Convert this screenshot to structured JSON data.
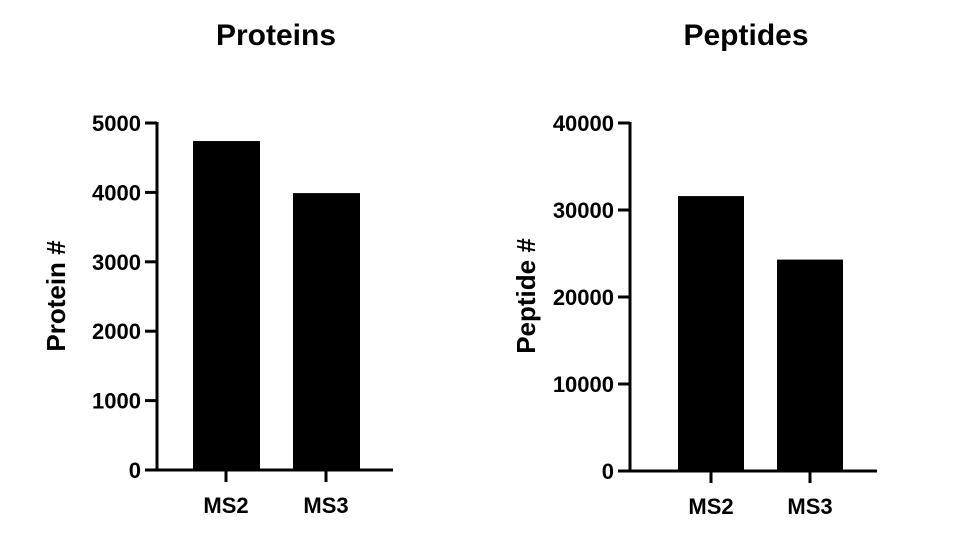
{
  "chart_data": [
    {
      "type": "bar",
      "title": "Proteins",
      "xlabel": "",
      "ylabel": "Protein #",
      "categories": [
        "MS2",
        "MS3"
      ],
      "values": [
        4740,
        3990
      ],
      "ylim": [
        0,
        5000
      ],
      "yticks": [
        "0",
        "1000",
        "2000",
        "3000",
        "4000",
        "5000"
      ],
      "grid": false,
      "legend": "none",
      "bar_color": "#000000"
    },
    {
      "type": "bar",
      "title": "Peptides",
      "xlabel": "",
      "ylabel": "Peptide #",
      "categories": [
        "MS2",
        "MS3"
      ],
      "values": [
        31600,
        24300
      ],
      "ylim": [
        0,
        40000
      ],
      "yticks": [
        "0",
        "10000",
        "20000",
        "30000",
        "40000"
      ],
      "grid": false,
      "legend": "none",
      "bar_color": "#000000"
    }
  ]
}
